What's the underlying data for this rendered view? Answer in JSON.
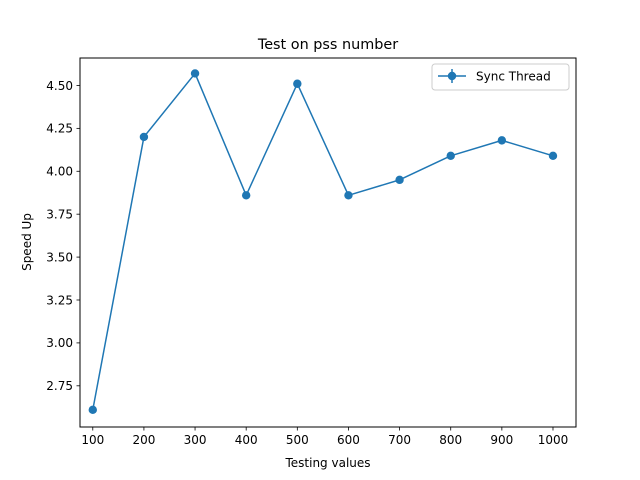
{
  "chart_data": {
    "type": "line",
    "title": "Test on pss number",
    "xlabel": "Testing values",
    "ylabel": "Speed Up",
    "x": [
      100,
      200,
      300,
      400,
      500,
      600,
      700,
      800,
      900,
      1000
    ],
    "xlim": [
      75,
      1045
    ],
    "ylim": [
      2.51,
      4.66
    ],
    "xticks": [
      "100",
      "200",
      "300",
      "400",
      "500",
      "600",
      "700",
      "800",
      "900",
      "1000"
    ],
    "yticks": [
      "2.75",
      "3.00",
      "3.25",
      "3.50",
      "3.75",
      "4.00",
      "4.25",
      "4.50"
    ],
    "grid": false,
    "legend_position": "top-right",
    "series": [
      {
        "name": "Sync Thread",
        "color": "#1f77b4",
        "marker": "circle",
        "error_bars": true,
        "values": [
          2.61,
          4.2,
          4.57,
          3.86,
          4.51,
          3.86,
          3.95,
          4.09,
          4.18,
          4.09
        ]
      }
    ]
  }
}
